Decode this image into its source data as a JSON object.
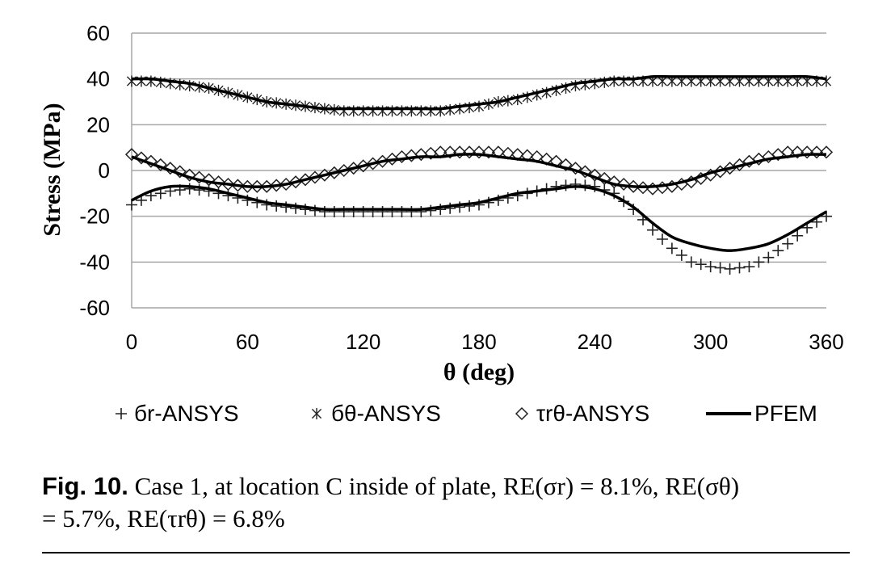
{
  "chart_data": {
    "type": "line",
    "xlabel": "θ (deg)",
    "ylabel": "Stress (MPa)",
    "xlim": [
      0,
      360
    ],
    "ylim": [
      -60,
      60
    ],
    "xticks": [
      "0",
      "60",
      "120",
      "180",
      "240",
      "300",
      "360"
    ],
    "yticks": [
      "60",
      "40",
      "20",
      "0",
      "-20",
      "-40",
      "-60"
    ],
    "grid": "horizontal",
    "legend_position": "bottom",
    "series": [
      {
        "name": "бr-ANSYS",
        "marker": "plus",
        "x": [
          0,
          10,
          20,
          30,
          40,
          50,
          60,
          70,
          80,
          90,
          100,
          110,
          120,
          130,
          140,
          150,
          160,
          170,
          180,
          190,
          200,
          210,
          220,
          230,
          240,
          250,
          260,
          270,
          280,
          290,
          300,
          310,
          320,
          330,
          340,
          350,
          360
        ],
        "y": [
          -15,
          -11,
          -9,
          -8,
          -9,
          -11,
          -13,
          -15,
          -16,
          -17,
          -18,
          -18,
          -18,
          -18,
          -18,
          -18,
          -17,
          -16,
          -15,
          -13,
          -11,
          -9,
          -7,
          -6,
          -7,
          -10,
          -17,
          -26,
          -34,
          -40,
          -42,
          -43,
          -42,
          -38,
          -32,
          -25,
          -20
        ]
      },
      {
        "name": "бθ-ANSYS",
        "marker": "asterisk",
        "x": [
          0,
          10,
          20,
          30,
          40,
          50,
          60,
          70,
          80,
          90,
          100,
          110,
          120,
          130,
          140,
          150,
          160,
          170,
          180,
          190,
          200,
          210,
          220,
          230,
          240,
          250,
          260,
          270,
          280,
          290,
          300,
          310,
          320,
          330,
          340,
          350,
          360
        ],
        "y": [
          39,
          39,
          38,
          37,
          36,
          34,
          32,
          30,
          29,
          28,
          27,
          26,
          26,
          26,
          26,
          26,
          26,
          27,
          28,
          30,
          31,
          33,
          35,
          37,
          38,
          39,
          39,
          39,
          39,
          39,
          39,
          39,
          39,
          39,
          39,
          39,
          39
        ]
      },
      {
        "name": "τrθ-ANSYS",
        "marker": "diamond",
        "x": [
          0,
          10,
          20,
          30,
          40,
          50,
          60,
          70,
          80,
          90,
          100,
          110,
          120,
          130,
          140,
          150,
          160,
          170,
          180,
          190,
          200,
          210,
          220,
          230,
          240,
          250,
          260,
          270,
          280,
          290,
          300,
          310,
          320,
          330,
          340,
          350,
          360
        ],
        "y": [
          7,
          4,
          1,
          -2,
          -4,
          -6,
          -7,
          -7,
          -6,
          -4,
          -2,
          0,
          2,
          4,
          6,
          7,
          8,
          8,
          8,
          8,
          7,
          6,
          4,
          1,
          -2,
          -5,
          -7,
          -8,
          -7,
          -5,
          -2,
          1,
          4,
          6,
          8,
          8,
          8
        ]
      },
      {
        "name": "PFEM",
        "marker": "none",
        "x": [
          0,
          10,
          20,
          30,
          40,
          50,
          60,
          70,
          80,
          90,
          100,
          110,
          120,
          130,
          140,
          150,
          160,
          170,
          180,
          190,
          200,
          210,
          220,
          230,
          240,
          250,
          260,
          270,
          280,
          290,
          300,
          310,
          320,
          330,
          340,
          350,
          360
        ],
        "y_sets": [
          [
            -13,
            -9,
            -7,
            -7,
            -8,
            -10,
            -12,
            -14,
            -15,
            -16,
            -17,
            -17,
            -17,
            -17,
            -17,
            -17,
            -16,
            -15,
            -14,
            -12,
            -10,
            -9,
            -8,
            -7,
            -8,
            -11,
            -16,
            -23,
            -29,
            -32,
            -34,
            -35,
            -34,
            -32,
            -28,
            -23,
            -18
          ],
          [
            40,
            40,
            39,
            38,
            36,
            34,
            32,
            30,
            29,
            28,
            27,
            27,
            27,
            27,
            27,
            27,
            27,
            28,
            29,
            30,
            32,
            34,
            36,
            38,
            39,
            40,
            40,
            41,
            41,
            41,
            41,
            41,
            41,
            41,
            41,
            41,
            40
          ],
          [
            6,
            3,
            0,
            -3,
            -5,
            -6,
            -7,
            -7,
            -6,
            -4,
            -2,
            0,
            2,
            4,
            5,
            6,
            6,
            7,
            7,
            6,
            5,
            4,
            2,
            0,
            -3,
            -6,
            -7,
            -7,
            -6,
            -4,
            -1,
            1,
            3,
            5,
            6,
            7,
            7
          ]
        ]
      }
    ]
  },
  "caption": {
    "label": "Fig.  10.",
    "text_line1": " Case 1, at location C inside of plate, RE(σr) = 8.1%, RE(σθ)",
    "text_line2": "= 5.7%, RE(τrθ) = 6.8%"
  }
}
